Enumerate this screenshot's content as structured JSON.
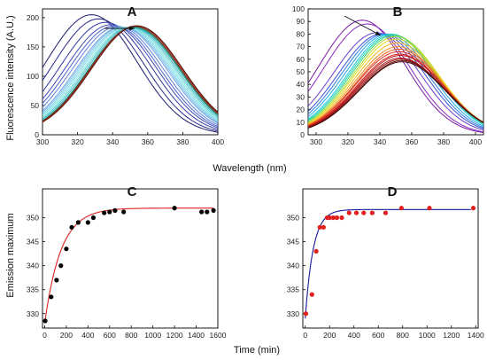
{
  "figure": {
    "xlabel_top": "Wavelength (nm)",
    "xlabel_bottom": "Time (min)",
    "ylabel_top": "Fluorescence intensity (A.U.)",
    "ylabel_bottom": "Emission maximum"
  },
  "chart_data": [
    {
      "panel": "A",
      "type": "line",
      "xlim": [
        300,
        400
      ],
      "ylim": [
        0,
        215
      ],
      "xticks": [
        300,
        320,
        340,
        360,
        380,
        400
      ],
      "yticks": [
        0,
        50,
        100,
        150,
        200
      ],
      "annotation": "arrow pointing right above peaks (red-shift)",
      "spectra": {
        "shape": "gaussian",
        "width_nm": 26,
        "peaks_nm": [
          328,
          332,
          336,
          339,
          341,
          343,
          345,
          346,
          347,
          348,
          349,
          350,
          351,
          352,
          352.5,
          353,
          353.5,
          354
        ],
        "heights": [
          205,
          198,
          192,
          188,
          186,
          185,
          184,
          184,
          183.5,
          183.5,
          183,
          183,
          183,
          183,
          184,
          185,
          186,
          186
        ],
        "colors": [
          "#1c1c6e",
          "#27288a",
          "#3138a0",
          "#3d4cb8",
          "#4962c8",
          "#5a82d8",
          "#6aa0e2",
          "#76bde8",
          "#80d2ea",
          "#86dee8",
          "#8ae6e0",
          "#5ecfd2",
          "#3fb8bf",
          "#2aa3a8",
          "#1a7f4e",
          "#8b2020",
          "#a32a1a",
          "#5a1a10"
        ]
      }
    },
    {
      "panel": "B",
      "type": "line",
      "xlim": [
        295,
        405
      ],
      "ylim": [
        0,
        100
      ],
      "xticks": [
        300,
        320,
        340,
        360,
        380,
        400
      ],
      "yticks": [
        0,
        10,
        20,
        30,
        40,
        50,
        60,
        70,
        80,
        90,
        100
      ],
      "annotation": "arrow pointing down-right above peaks (red-shift)",
      "spectra": {
        "shape": "gaussian",
        "width_nm": 27,
        "peaks_nm": [
          329,
          332,
          338,
          341,
          343,
          345,
          347,
          348,
          349,
          350,
          350.5,
          351,
          351.5,
          352,
          352,
          352.5,
          353,
          353,
          353.5,
          354,
          354
        ],
        "heights": [
          91,
          88,
          81,
          80,
          80,
          80,
          80,
          79.5,
          79,
          78,
          76,
          73,
          70,
          68,
          66,
          64,
          63,
          61,
          60,
          59,
          58
        ],
        "colors": [
          "#7a1aa0",
          "#8a2ac0",
          "#6a3ad0",
          "#3a50d8",
          "#2c7ee0",
          "#22a6e8",
          "#20c8e0",
          "#24d6b4",
          "#40d070",
          "#a8dc30",
          "#e6dc20",
          "#f2b818",
          "#f08a18",
          "#e85a1a",
          "#e0301c",
          "#d2201a",
          "#c01818",
          "#aa1414",
          "#901010",
          "#700c0c",
          "#3a0808"
        ]
      }
    },
    {
      "panel": "C",
      "type": "scatter",
      "xlim": [
        -20,
        1600
      ],
      "ylim": [
        327,
        356
      ],
      "xticks": [
        0,
        200,
        400,
        600,
        800,
        1000,
        1200,
        1400,
        1600
      ],
      "yticks": [
        330,
        335,
        340,
        345,
        350
      ],
      "points": [
        [
          5,
          328.5
        ],
        [
          60,
          333.5
        ],
        [
          110,
          337
        ],
        [
          150,
          340
        ],
        [
          200,
          343.5
        ],
        [
          250,
          348
        ],
        [
          310,
          349
        ],
        [
          400,
          349
        ],
        [
          450,
          350
        ],
        [
          550,
          351
        ],
        [
          600,
          351.2
        ],
        [
          650,
          351.5
        ],
        [
          730,
          351.2
        ],
        [
          1200,
          352
        ],
        [
          1450,
          351.2
        ],
        [
          1500,
          351.2
        ],
        [
          1560,
          351.5
        ]
      ],
      "point_color": "#000000",
      "fit": {
        "model": "exponential",
        "y0": 328,
        "ymax": 352,
        "tau": 150,
        "color": "#e0201c"
      }
    },
    {
      "panel": "D",
      "type": "scatter",
      "xlim": [
        -20,
        1420
      ],
      "ylim": [
        327,
        356
      ],
      "xticks": [
        0,
        200,
        400,
        600,
        800,
        1000,
        1200,
        1400
      ],
      "yticks": [
        330,
        335,
        340,
        345,
        350
      ],
      "points": [
        [
          5,
          330
        ],
        [
          55,
          334
        ],
        [
          90,
          343
        ],
        [
          120,
          348
        ],
        [
          150,
          348
        ],
        [
          180,
          350
        ],
        [
          200,
          350
        ],
        [
          230,
          350
        ],
        [
          260,
          350
        ],
        [
          300,
          350
        ],
        [
          360,
          351
        ],
        [
          420,
          351
        ],
        [
          480,
          351
        ],
        [
          550,
          351
        ],
        [
          660,
          351
        ],
        [
          790,
          352
        ],
        [
          1020,
          352
        ],
        [
          1380,
          352
        ]
      ],
      "point_color": "#e0201c",
      "fit": {
        "model": "exponential",
        "y0": 329,
        "ymax": 351.7,
        "tau": 65,
        "color": "#1a1a9e"
      }
    }
  ]
}
